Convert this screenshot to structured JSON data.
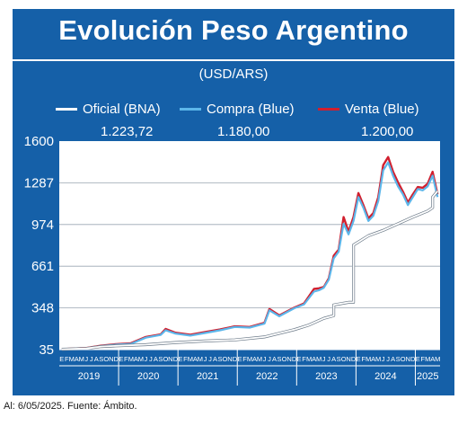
{
  "title": "Evolución Peso Argentino",
  "subtitle": "(USD/ARS)",
  "footer": "Al: 6/05/2025. Fuente: Ámbito.",
  "legend": [
    {
      "label": "Oficial (BNA)",
      "value": "1.223,72",
      "color": "#ffffff"
    },
    {
      "label": "Compra (Blue)",
      "value": "1.180,00",
      "color": "#5cb6ea"
    },
    {
      "label": "Venta (Blue)",
      "value": "1.200,00",
      "color": "#d11f2e"
    }
  ],
  "chart_data": {
    "type": "line",
    "y_ticks": [
      "1600",
      "1287",
      "974",
      "661",
      "348",
      "35"
    ],
    "ylim": [
      35,
      1600
    ],
    "grid": true,
    "month_letters": [
      "E",
      "F",
      "M",
      "A",
      "M",
      "J",
      "J",
      "A",
      "S",
      "O",
      "N",
      "D"
    ],
    "month_span": [
      "2019-01",
      "2025-05"
    ],
    "years": [
      "2019",
      "2020",
      "2021",
      "2022",
      "2023",
      "2024",
      "2025"
    ],
    "series": [
      {
        "name": "Oficial (BNA)",
        "color": "#ffffff",
        "points": [
          [
            "2019-01",
            38
          ],
          [
            "2019-06",
            44
          ],
          [
            "2019-09",
            58
          ],
          [
            "2019-12",
            63
          ],
          [
            "2020-06",
            72
          ],
          [
            "2020-12",
            88
          ],
          [
            "2021-06",
            100
          ],
          [
            "2021-12",
            108
          ],
          [
            "2022-06",
            130
          ],
          [
            "2022-12",
            185
          ],
          [
            "2023-03",
            220
          ],
          [
            "2023-06",
            270
          ],
          [
            "2023-08",
            290
          ],
          [
            "2023-08",
            370
          ],
          [
            "2023-11",
            390
          ],
          [
            "2023-12",
            390
          ],
          [
            "2023-12",
            820
          ],
          [
            "2024-03",
            890
          ],
          [
            "2024-06",
            930
          ],
          [
            "2024-09",
            980
          ],
          [
            "2024-12",
            1030
          ],
          [
            "2025-03",
            1075
          ],
          [
            "2025-04",
            1100
          ],
          [
            "2025-04",
            1180
          ],
          [
            "2025-05",
            1224
          ]
        ]
      },
      {
        "name": "Compra (Blue)",
        "color": "#5cb6ea",
        "points": [
          [
            "2019-01",
            38
          ],
          [
            "2019-06",
            45
          ],
          [
            "2019-09",
            62
          ],
          [
            "2019-12",
            72
          ],
          [
            "2020-03",
            78
          ],
          [
            "2020-06",
            125
          ],
          [
            "2020-09",
            145
          ],
          [
            "2020-10",
            180
          ],
          [
            "2020-12",
            155
          ],
          [
            "2021-03",
            140
          ],
          [
            "2021-06",
            160
          ],
          [
            "2021-09",
            180
          ],
          [
            "2021-12",
            205
          ],
          [
            "2022-03",
            200
          ],
          [
            "2022-06",
            230
          ],
          [
            "2022-07",
            330
          ],
          [
            "2022-09",
            285
          ],
          [
            "2022-12",
            345
          ],
          [
            "2023-02",
            375
          ],
          [
            "2023-04",
            470
          ],
          [
            "2023-05",
            480
          ],
          [
            "2023-06",
            500
          ],
          [
            "2023-07",
            560
          ],
          [
            "2023-08",
            720
          ],
          [
            "2023-09",
            770
          ],
          [
            "2023-10",
            980
          ],
          [
            "2023-11",
            900
          ],
          [
            "2023-12",
            1000
          ],
          [
            "2024-01",
            1180
          ],
          [
            "2024-02",
            1100
          ],
          [
            "2024-03",
            1000
          ],
          [
            "2024-04",
            1040
          ],
          [
            "2024-05",
            1150
          ],
          [
            "2024-06",
            1380
          ],
          [
            "2024-07",
            1440
          ],
          [
            "2024-08",
            1340
          ],
          [
            "2024-09",
            1260
          ],
          [
            "2024-10",
            1200
          ],
          [
            "2024-11",
            1120
          ],
          [
            "2024-12",
            1180
          ],
          [
            "2025-01",
            1240
          ],
          [
            "2025-02",
            1230
          ],
          [
            "2025-03",
            1260
          ],
          [
            "2025-04",
            1340
          ],
          [
            "2025-05",
            1180
          ]
        ]
      },
      {
        "name": "Venta (Blue)",
        "color": "#d11f2e",
        "points": [
          [
            "2019-01",
            39
          ],
          [
            "2019-06",
            47
          ],
          [
            "2019-09",
            65
          ],
          [
            "2019-12",
            76
          ],
          [
            "2020-03",
            83
          ],
          [
            "2020-06",
            130
          ],
          [
            "2020-09",
            150
          ],
          [
            "2020-10",
            190
          ],
          [
            "2020-12",
            162
          ],
          [
            "2021-03",
            147
          ],
          [
            "2021-06",
            167
          ],
          [
            "2021-09",
            186
          ],
          [
            "2021-12",
            210
          ],
          [
            "2022-03",
            205
          ],
          [
            "2022-06",
            236
          ],
          [
            "2022-07",
            340
          ],
          [
            "2022-09",
            292
          ],
          [
            "2022-12",
            350
          ],
          [
            "2023-02",
            382
          ],
          [
            "2023-04",
            490
          ],
          [
            "2023-05",
            495
          ],
          [
            "2023-06",
            505
          ],
          [
            "2023-07",
            570
          ],
          [
            "2023-08",
            740
          ],
          [
            "2023-09",
            785
          ],
          [
            "2023-10",
            1030
          ],
          [
            "2023-11",
            920
          ],
          [
            "2023-12",
            1030
          ],
          [
            "2024-01",
            1210
          ],
          [
            "2024-02",
            1120
          ],
          [
            "2024-03",
            1020
          ],
          [
            "2024-04",
            1060
          ],
          [
            "2024-05",
            1180
          ],
          [
            "2024-06",
            1420
          ],
          [
            "2024-07",
            1480
          ],
          [
            "2024-08",
            1370
          ],
          [
            "2024-09",
            1290
          ],
          [
            "2024-10",
            1220
          ],
          [
            "2024-11",
            1140
          ],
          [
            "2024-12",
            1200
          ],
          [
            "2025-01",
            1255
          ],
          [
            "2025-02",
            1250
          ],
          [
            "2025-03",
            1280
          ],
          [
            "2025-04",
            1370
          ],
          [
            "2025-05",
            1200
          ]
        ]
      }
    ]
  }
}
